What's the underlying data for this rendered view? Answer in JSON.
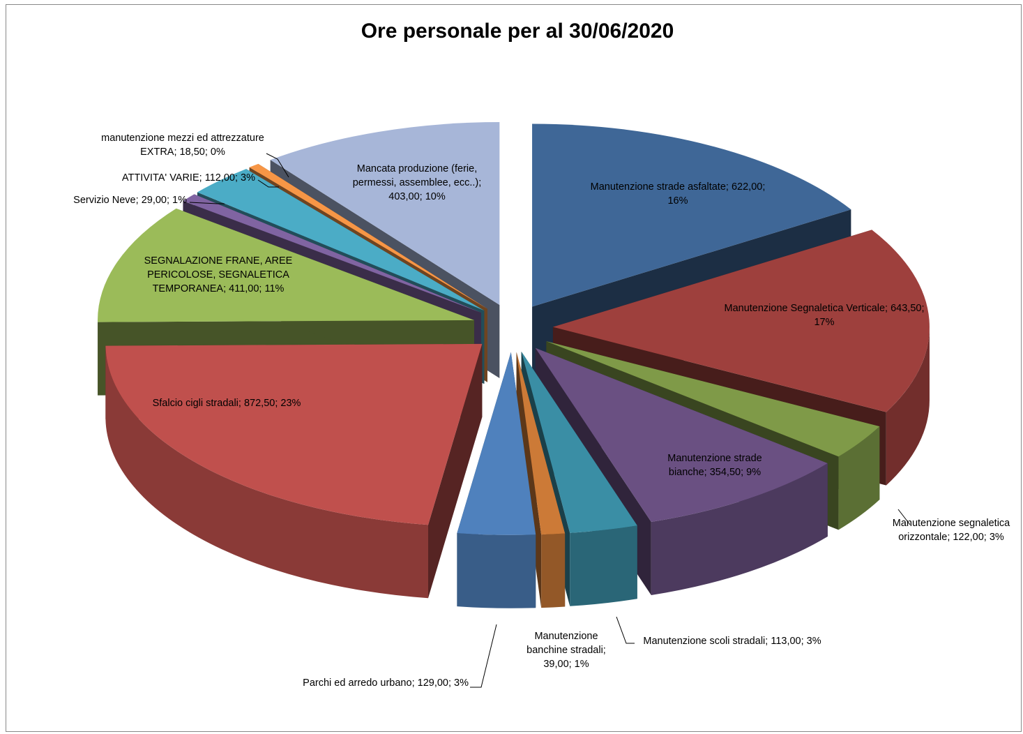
{
  "chart_data": {
    "type": "pie",
    "title": "Ore personale per al 30/06/2020",
    "categories": [
      "Manutenzione strade asfaltate",
      "Manutenzione Segnaletica Verticale",
      "Manutenzione segnaletica orizzontale",
      "Manutenzione strade bianche",
      "Manutenzione scoli stradali",
      "Manutenzione banchine stradali",
      "Parchi ed arredo urbano",
      "Sfalcio cigli stradali",
      "SEGNALAZIONE FRANE, AREE PERICOLOSE, SEGNALETICA TEMPORANEA",
      "Servizio Neve",
      "ATTIVITA' VARIE",
      "manutenzione mezzi ed attrezzature EXTRA",
      "Mancata produzione (ferie, permessi, assemblee, ecc..)"
    ],
    "values": [
      622,
      643.5,
      122,
      354.5,
      113,
      39,
      129,
      872.5,
      411,
      29,
      112,
      18.5,
      403
    ],
    "value_labels": [
      "622,00; 16%",
      "643,50; 17%",
      "122,00; 3%",
      "354,50; 9%",
      "113,00; 3%",
      "39,00; 1%",
      "129,00; 3%",
      "872,50; 23%",
      "411,00; 11%",
      "29,00; 1%",
      "112,00; 3%",
      "18,50; 0%",
      "403,00; 10%"
    ],
    "label_separator": "; ",
    "colors": [
      "#3f6797",
      "#9e403d",
      "#7f9a48",
      "#6a5082",
      "#3a8ea5",
      "#cc7a37",
      "#4f81bd",
      "#c0504d",
      "#9bbb59",
      "#8064a2",
      "#4bacc6",
      "#f79646",
      "#a7b6d8"
    ]
  }
}
